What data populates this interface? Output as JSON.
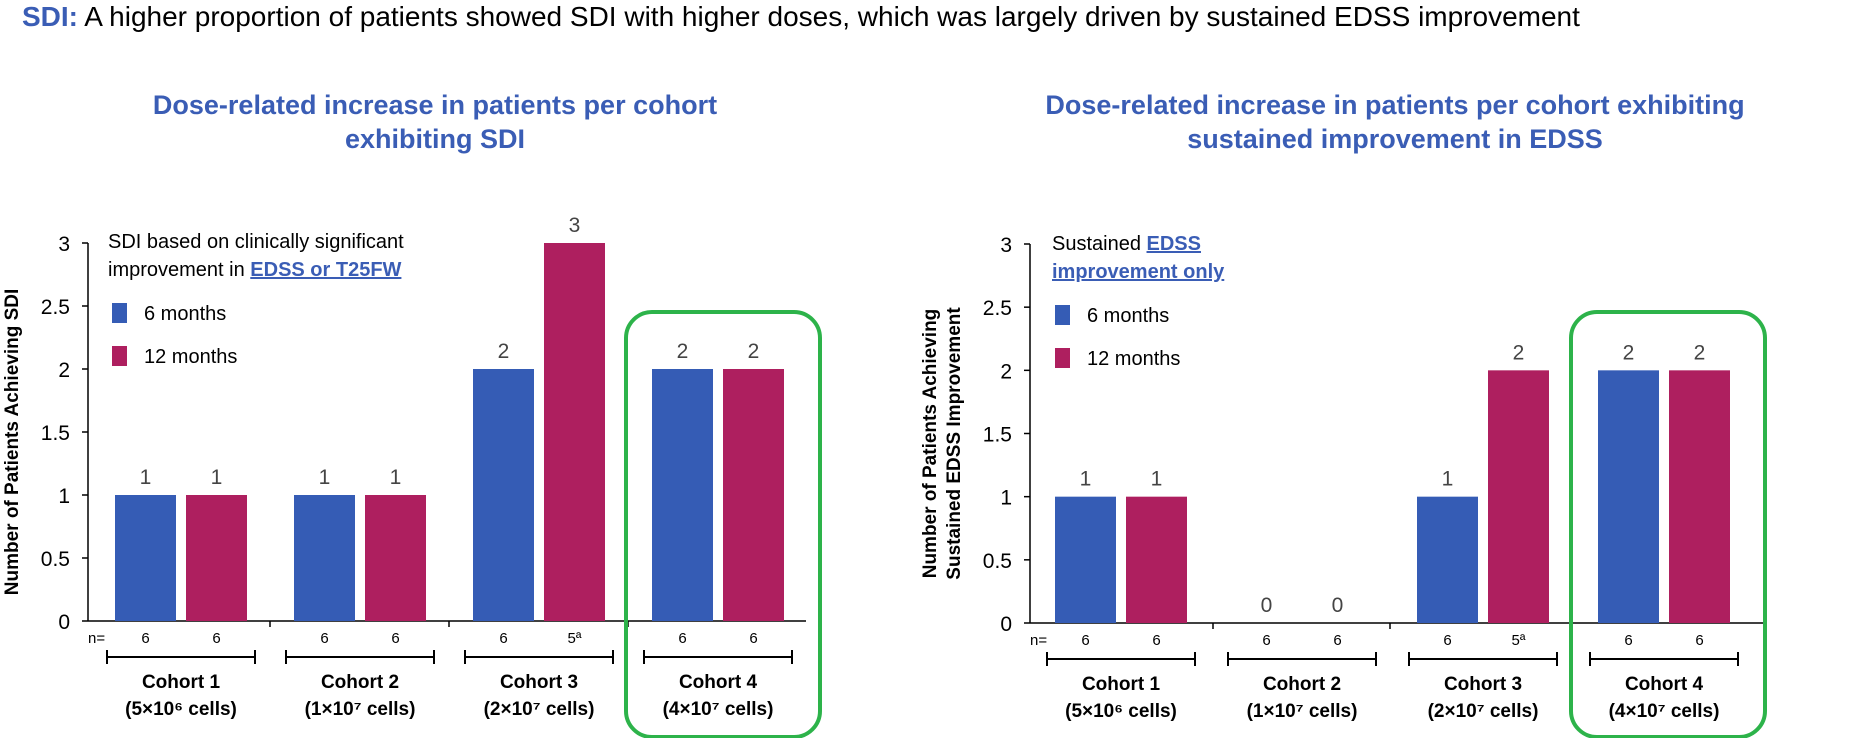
{
  "headline": {
    "lead": "SDI:",
    "text": "A higher proportion of patients showed SDI with higher doses, which was largely driven by sustained EDSS improvement"
  },
  "colors": {
    "six_months": "#355cb5",
    "twelve_months": "#ae1f5f",
    "highlight_box": "#2db34a",
    "title": "#3a5db5"
  },
  "chart_data": [
    {
      "type": "bar",
      "title": "Dose-related increase in patients per cohort exhibiting SDI",
      "title_lines": [
        "Dose-related increase in patients per cohort",
        "exhibiting SDI"
      ],
      "ylabel": "Number of Patients Achieving SDI",
      "ylabel_lines": [
        "Number of Patients Achieving SDI"
      ],
      "ylim": [
        0,
        3
      ],
      "yticks": [
        "0",
        "0.5",
        "1",
        "1.5",
        "2",
        "2.5",
        "3"
      ],
      "grid": false,
      "note_plain": "SDI based on clinically significant",
      "note_plain2": "improvement in ",
      "note_link": "EDSS or T25FW",
      "legend_position": "top-left",
      "categories": [
        "Cohort 1",
        "Cohort 2",
        "Cohort 3",
        "Cohort 4"
      ],
      "category_doses": [
        "(5×10⁶ cells)",
        "(1×10⁷ cells)",
        "(2×10⁷ cells)",
        "(4×10⁷ cells)"
      ],
      "highlighted_category": "Cohort 4",
      "n_prefix": "n=",
      "n_values": [
        [
          "6",
          "6"
        ],
        [
          "6",
          "6"
        ],
        [
          "6",
          "5ª"
        ],
        [
          "6",
          "6"
        ]
      ],
      "series": [
        {
          "name": "6 months",
          "values": [
            1,
            1,
            2,
            2
          ]
        },
        {
          "name": "12 months",
          "values": [
            1,
            1,
            3,
            2
          ]
        }
      ]
    },
    {
      "type": "bar",
      "title": "Dose-related increase in patients per cohort exhibiting sustained improvement in EDSS",
      "title_lines": [
        "Dose-related increase in patients per cohort exhibiting",
        "sustained improvement in EDSS"
      ],
      "ylabel": "Number of Patients Achieving Sustained EDSS Improvement",
      "ylabel_lines": [
        "Number of Patients Achieving",
        "Sustained EDSS Improvement"
      ],
      "ylim": [
        0,
        3
      ],
      "yticks": [
        "0",
        "0.5",
        "1",
        "1.5",
        "2",
        "2.5",
        "3"
      ],
      "grid": false,
      "note_plain": "Sustained ",
      "note_link": "EDSS",
      "note_link2": "improvement only",
      "legend_position": "top-left",
      "categories": [
        "Cohort 1",
        "Cohort 2",
        "Cohort 3",
        "Cohort 4"
      ],
      "category_doses": [
        "(5×10⁶ cells)",
        "(1×10⁷ cells)",
        "(2×10⁷ cells)",
        "(4×10⁷ cells)"
      ],
      "highlighted_category": "Cohort 4",
      "n_prefix": "n=",
      "n_values": [
        [
          "6",
          "6"
        ],
        [
          "6",
          "6"
        ],
        [
          "6",
          "5ª"
        ],
        [
          "6",
          "6"
        ]
      ],
      "series": [
        {
          "name": "6 months",
          "values": [
            1,
            0,
            1,
            2
          ]
        },
        {
          "name": "12 months",
          "values": [
            1,
            0,
            2,
            2
          ]
        }
      ]
    }
  ]
}
